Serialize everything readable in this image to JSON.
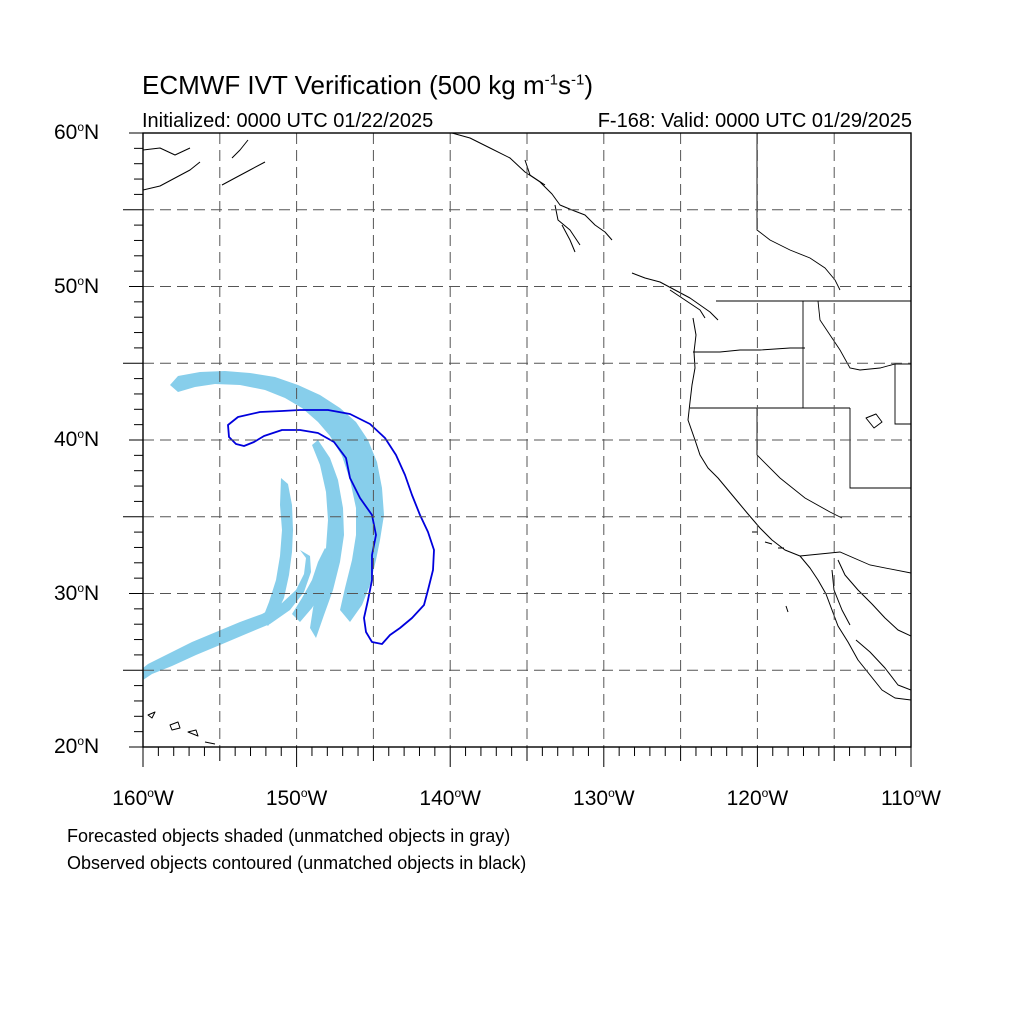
{
  "title": {
    "main": "ECMWF IVT Verification (500 kg m",
    "sup1": "-1",
    "mid": "s",
    "sup2": "-1",
    "end": ")"
  },
  "initialized": "Initialized: 0000 UTC 01/22/2025",
  "valid": "F-168: Valid: 0000 UTC 01/29/2025",
  "lat_labels": [
    {
      "num": "60",
      "hem": "N",
      "value": 60
    },
    {
      "num": "50",
      "hem": "N",
      "value": 50
    },
    {
      "num": "40",
      "hem": "N",
      "value": 40
    },
    {
      "num": "30",
      "hem": "N",
      "value": 30
    },
    {
      "num": "20",
      "hem": "N",
      "value": 20
    }
  ],
  "lon_labels": [
    {
      "num": "160",
      "hem": "W",
      "value": -160
    },
    {
      "num": "150",
      "hem": "W",
      "value": -150
    },
    {
      "num": "140",
      "hem": "W",
      "value": -140
    },
    {
      "num": "130",
      "hem": "W",
      "value": -130
    },
    {
      "num": "120",
      "hem": "W",
      "value": -120
    },
    {
      "num": "110",
      "hem": "W",
      "value": -110
    }
  ],
  "map_extent": {
    "lon": [
      -160,
      -110
    ],
    "lat": [
      20,
      60
    ]
  },
  "grid_spacing_deg": 5,
  "degree_symbol": "o",
  "notes": [
    "Forecasted objects shaded (unmatched objects in gray)",
    "Observed objects contoured (unmatched objects in black)"
  ],
  "colors": {
    "forecast_fill": "#87ceeb",
    "observed_contour": "#0000dd",
    "coastline": "#000000",
    "grid": "#555555"
  }
}
